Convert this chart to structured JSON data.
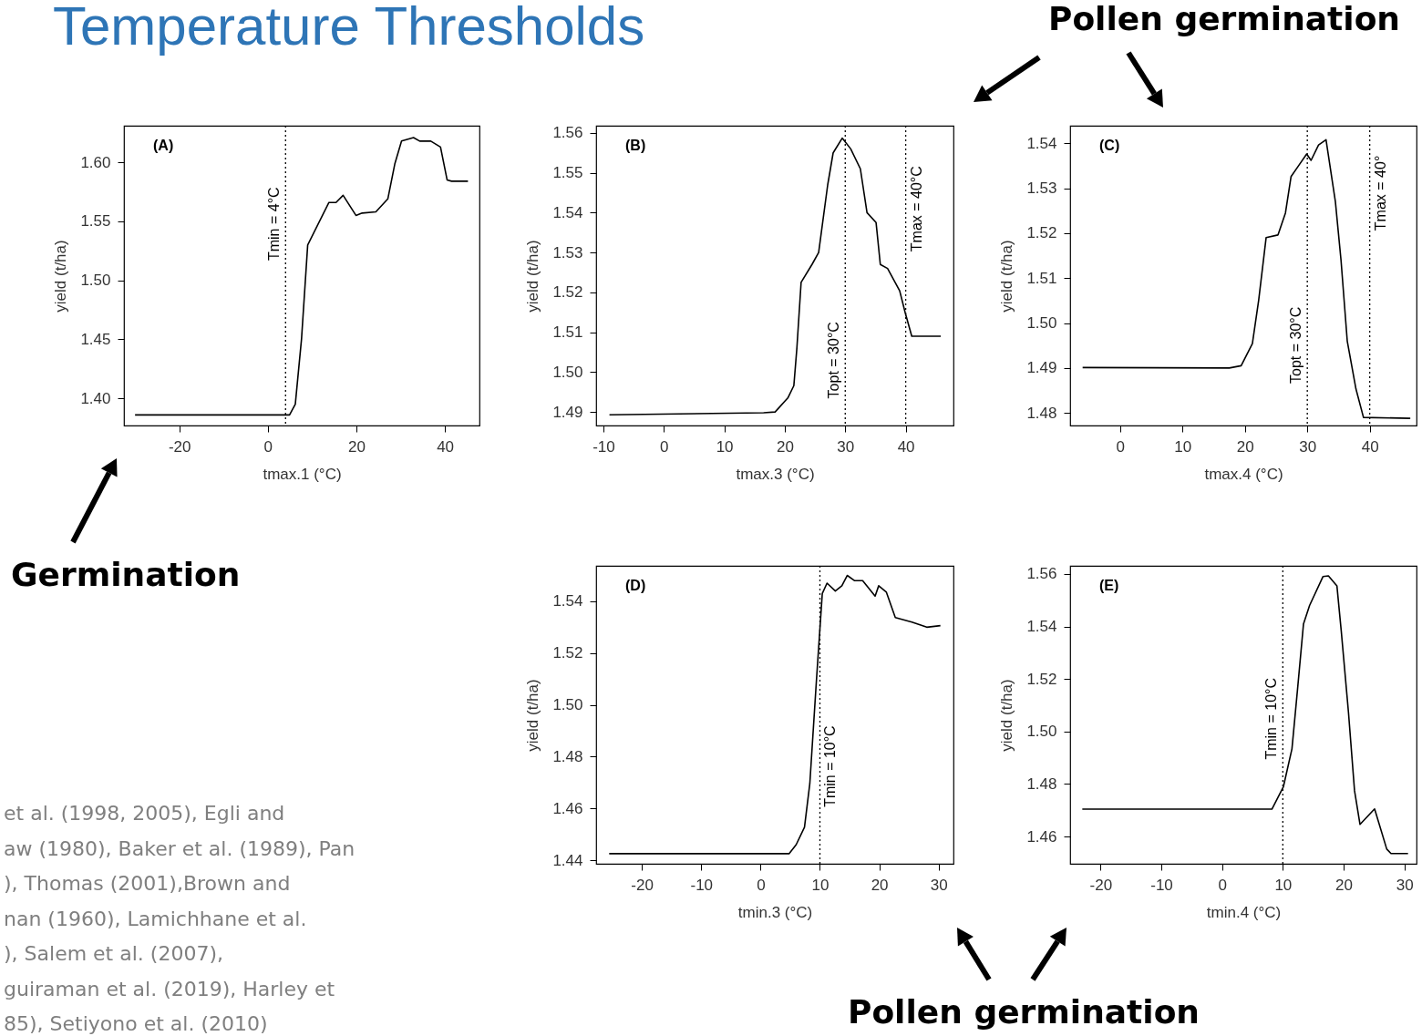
{
  "chart_data": [
    {
      "type": "line",
      "title": "Temperature Thresholds",
      "xlabel": "tmax.1 (°C)",
      "ylabel": "yield (t/ha)",
      "color": "#000000",
      "grid": false,
      "x": [
        -30,
        4.9,
        6.2,
        7.6,
        9.0,
        13.8,
        15.4,
        17.0,
        19.9,
        21.3,
        24.4,
        27.1,
        28.7,
        30.2,
        32.9,
        34.3,
        36.8,
        39.0,
        40.5,
        41.5,
        45.2
      ],
      "values": [
        1.386,
        1.386,
        1.395,
        1.45,
        1.53,
        1.566,
        1.566,
        1.572,
        1.555,
        1.557,
        1.558,
        1.569,
        1.599,
        1.618,
        1.621,
        1.618,
        1.618,
        1.613,
        1.585,
        1.584,
        1.584
      ],
      "xlim": [
        -32.5,
        47.8
      ],
      "ylim": [
        1.377,
        1.631
      ],
      "xticks": [
        -20,
        0,
        20,
        40
      ],
      "yticks": [
        {
          "value": 1.4,
          "label": "1.40"
        },
        {
          "value": 1.45,
          "label": "1.45"
        },
        {
          "value": 1.5,
          "label": "1.50"
        },
        {
          "value": 1.55,
          "label": "1.55"
        },
        {
          "value": 1.6,
          "label": "1.60"
        }
      ],
      "ref_lines": [
        {
          "axis": "x",
          "value": 4,
          "label": "Tmin = 4°C",
          "line_style": "dotted",
          "color": "#000000"
        }
      ],
      "annotations": [
        "(A)",
        "Germination",
        "et al. (1998, 2005), Egli and\naw (1980), Baker et al. (1989), Pan\n), Thomas (2001),Brown and\nnan (1960), Lamichhane et al.\n), Salem et al. (2007),\nguiraman et al. (2019), Harley et\n85), Setiyono et al. (2010)"
      ]
    },
    {
      "type": "line",
      "xlabel": "tmax.3 (°C)",
      "ylabel": "yield (t/ha)",
      "color": "#000000",
      "grid": false,
      "x": [
        -9.0,
        16.5,
        18.4,
        20.5,
        21.5,
        22.0,
        22.7,
        24.5,
        25.6,
        27.1,
        28.0,
        29.5,
        30.9,
        32.5,
        33.6,
        35.1,
        35.8,
        37.0,
        39.0,
        39.9,
        41.0,
        45.8
      ],
      "values": [
        1.4893,
        1.4898,
        1.49,
        1.4935,
        1.4966,
        1.506,
        1.5225,
        1.527,
        1.53,
        1.547,
        1.555,
        1.5587,
        1.556,
        1.551,
        1.54,
        1.5375,
        1.527,
        1.526,
        1.5204,
        1.515,
        1.509,
        1.509
      ],
      "xlim": [
        -11.2,
        47.9
      ],
      "ylim": [
        1.4866,
        1.5618
      ],
      "xticks": [
        -10,
        0,
        10,
        20,
        30,
        40
      ],
      "yticks": [
        {
          "value": 1.49,
          "label": "1.49"
        },
        {
          "value": 1.5,
          "label": "1.50"
        },
        {
          "value": 1.51,
          "label": "1.51"
        },
        {
          "value": 1.52,
          "label": "1.52"
        },
        {
          "value": 1.53,
          "label": "1.53"
        },
        {
          "value": 1.54,
          "label": "1.54"
        },
        {
          "value": 1.55,
          "label": "1.55"
        },
        {
          "value": 1.56,
          "label": "1.56"
        }
      ],
      "ref_lines": [
        {
          "axis": "x",
          "value": 30,
          "label": "Topt = 30°C",
          "line_style": "dotted",
          "color": "#000000"
        },
        {
          "axis": "x",
          "value": 40,
          "label": "Tmax = 40°C",
          "line_style": "dotted",
          "color": "#000000"
        }
      ],
      "annotations": [
        "(B)",
        "Pollen germination"
      ]
    },
    {
      "type": "line",
      "xlabel": "tmax.4 (°C)",
      "ylabel": "yield (t/ha)",
      "color": "#000000",
      "grid": false,
      "x": [
        -6.0,
        17.5,
        19.4,
        21.2,
        22.2,
        23.4,
        25.3,
        26.5,
        27.4,
        28.7,
        29.9,
        30.6,
        31.8,
        33.0,
        34.5,
        35.4,
        36.4,
        37.8,
        39.0,
        46.5
      ],
      "values": [
        1.4901,
        1.49,
        1.4905,
        1.4954,
        1.505,
        1.519,
        1.5196,
        1.5245,
        1.5326,
        1.5352,
        1.5376,
        1.5362,
        1.5396,
        1.5408,
        1.527,
        1.514,
        1.496,
        1.4853,
        1.479,
        1.4788
      ],
      "xlim": [
        -8.0,
        47.5
      ],
      "ylim": [
        1.4772,
        1.5439
      ],
      "xticks": [
        0,
        10,
        20,
        30,
        40
      ],
      "yticks": [
        {
          "value": 1.48,
          "label": "1.48"
        },
        {
          "value": 1.49,
          "label": "1.49"
        },
        {
          "value": 1.5,
          "label": "1.50"
        },
        {
          "value": 1.51,
          "label": "1.51"
        },
        {
          "value": 1.52,
          "label": "1.52"
        },
        {
          "value": 1.53,
          "label": "1.53"
        },
        {
          "value": 1.54,
          "label": "1.54"
        }
      ],
      "ref_lines": [
        {
          "axis": "x",
          "value": 30,
          "label": "Topt = 30°C",
          "line_style": "dotted",
          "color": "#000000"
        },
        {
          "axis": "x",
          "value": 40,
          "label": "Tmax = 40°",
          "line_style": "dotted",
          "color": "#000000"
        }
      ],
      "annotations": [
        "(C)"
      ]
    },
    {
      "type": "line",
      "xlabel": "tmin.3 (°C)",
      "ylabel": "yield (t/ha)",
      "color": "#000000",
      "grid": false,
      "x": [
        -25.5,
        4.8,
        6.0,
        7.4,
        8.3,
        9.4,
        10.4,
        11.2,
        12.6,
        13.7,
        14.6,
        15.8,
        17.2,
        19.3,
        19.9,
        21.2,
        22.7,
        25.5,
        28.0,
        30.3
      ],
      "values": [
        1.4425,
        1.4425,
        1.446,
        1.4527,
        1.4696,
        1.509,
        1.543,
        1.547,
        1.544,
        1.546,
        1.55,
        1.548,
        1.548,
        1.542,
        1.546,
        1.5435,
        1.5337,
        1.532,
        1.53,
        1.5306
      ],
      "xlim": [
        -27.7,
        32.5
      ],
      "ylim": [
        1.4386,
        1.5537
      ],
      "xticks": [
        -20,
        -10,
        0,
        10,
        20,
        30
      ],
      "yticks": [
        {
          "value": 1.44,
          "label": "1.44"
        },
        {
          "value": 1.46,
          "label": "1.46"
        },
        {
          "value": 1.48,
          "label": "1.48"
        },
        {
          "value": 1.5,
          "label": "1.50"
        },
        {
          "value": 1.52,
          "label": "1.52"
        },
        {
          "value": 1.54,
          "label": "1.54"
        }
      ],
      "ref_lines": [
        {
          "axis": "x",
          "value": 10,
          "label": "Tmin = 10°C",
          "line_style": "dotted",
          "color": "#000000"
        }
      ],
      "annotations": [
        "(D)",
        "Pollen germination"
      ]
    },
    {
      "type": "line",
      "xlabel": "tmin.4 (°C)",
      "ylabel": "yield (t/ha)",
      "color": "#000000",
      "grid": false,
      "x": [
        -23.0,
        8.2,
        10.1,
        11.5,
        12.4,
        13.4,
        14.4,
        16.6,
        17.5,
        18.9,
        19.6,
        20.8,
        21.8,
        22.7,
        25.1,
        27.1,
        27.8,
        30.6
      ],
      "values": [
        1.4704,
        1.4704,
        1.479,
        1.4934,
        1.5156,
        1.541,
        1.548,
        1.559,
        1.5593,
        1.5555,
        1.5386,
        1.5073,
        1.4774,
        1.4646,
        1.4705,
        1.4552,
        1.4535,
        1.4535
      ],
      "xlim": [
        -25.0,
        32.0
      ],
      "ylim": [
        1.4496,
        1.5631
      ],
      "xticks": [
        -20,
        -10,
        0,
        10,
        20,
        30
      ],
      "yticks": [
        {
          "value": 1.46,
          "label": "1.46"
        },
        {
          "value": 1.48,
          "label": "1.48"
        },
        {
          "value": 1.5,
          "label": "1.50"
        },
        {
          "value": 1.52,
          "label": "1.52"
        },
        {
          "value": 1.54,
          "label": "1.54"
        },
        {
          "value": 1.56,
          "label": "1.56"
        }
      ],
      "ref_lines": [
        {
          "axis": "x",
          "value": 10,
          "label": "Tmin = 10°C",
          "line_style": "dotted",
          "color": "#000000"
        }
      ],
      "annotations": [
        "(E)"
      ]
    }
  ]
}
